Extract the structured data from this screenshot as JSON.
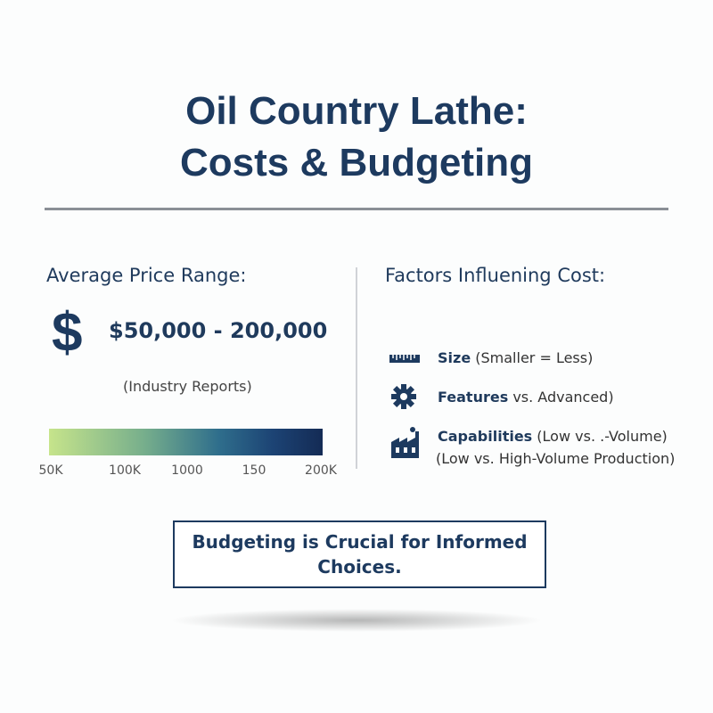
{
  "header": {
    "title_lines": [
      "Oil Country Lathe:",
      "Costs & Budgeting"
    ]
  },
  "price_panel": {
    "heading": "Average Price Range:",
    "symbol": "$",
    "range": "$50,000 - 200,000",
    "source": "(Industry Reports)",
    "scale_labels": [
      "50K",
      "100K",
      "1000",
      "150",
      "200K"
    ]
  },
  "factors_panel": {
    "heading": "Factors Influening Cost:",
    "factors": [
      {
        "label": "Size",
        "detail": "(Smaller = Less)"
      },
      {
        "label": "Features",
        "detail": "vs. Advanced)"
      },
      {
        "label": "Capabilities",
        "detail": "(Low vs. .-Volume)",
        "note": "(Low vs. High-Volume Production)"
      }
    ]
  },
  "callout": {
    "text": "Budgeting is Crucial for Informed Choices."
  }
}
